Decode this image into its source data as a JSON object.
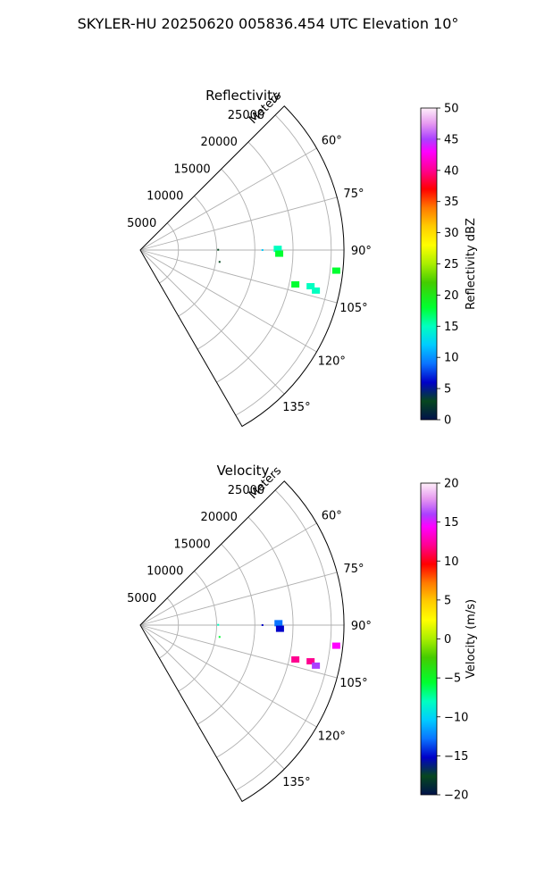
{
  "figure_title": "SKYLER-HU  20250620  005836.454 UTC Elevation 10°",
  "chart_data": [
    {
      "type": "polar-sector",
      "title": "Reflectivity",
      "range_label": "Meters",
      "range_ticks": [
        5000,
        10000,
        15000,
        20000,
        25000
      ],
      "range_max": 26667,
      "azimuth_range_deg": [
        45,
        150
      ],
      "azimuth_ticks": [
        60,
        75,
        90,
        105,
        120,
        135
      ],
      "azimuth_tick_labels": [
        "60°",
        "75°",
        "90°",
        "105°",
        "120°",
        "135°"
      ],
      "grid": true,
      "colorbar": {
        "label": "Reflectivity dBZ",
        "min": 0,
        "max": 50,
        "ticks": [
          0,
          5,
          10,
          15,
          20,
          25,
          30,
          35,
          40,
          45,
          50
        ],
        "tick_labels": [
          "0",
          "5",
          "10",
          "15",
          "20",
          "25",
          "30",
          "35",
          "40",
          "45",
          "50"
        ]
      },
      "echoes": [
        {
          "az": 89.5,
          "r": 18000,
          "value": 17
        },
        {
          "az": 91.5,
          "r": 18200,
          "value": 18
        },
        {
          "az": 89.8,
          "r": 10200,
          "value": 3
        },
        {
          "az": 90.0,
          "r": 16000,
          "value": 12
        },
        {
          "az": 96.0,
          "r": 25800,
          "value": 21
        },
        {
          "az": 98.5,
          "r": 10500,
          "value": 3
        },
        {
          "az": 102.5,
          "r": 20800,
          "value": 20
        },
        {
          "az": 102.0,
          "r": 22800,
          "value": 16
        },
        {
          "az": 103.0,
          "r": 23600,
          "value": 15
        }
      ]
    },
    {
      "type": "polar-sector",
      "title": "Velocity",
      "range_label": "Meters",
      "range_ticks": [
        5000,
        10000,
        15000,
        20000,
        25000
      ],
      "range_max": 26667,
      "azimuth_range_deg": [
        45,
        150
      ],
      "azimuth_ticks": [
        60,
        75,
        90,
        105,
        120,
        135
      ],
      "azimuth_tick_labels": [
        "60°",
        "75°",
        "90°",
        "105°",
        "120°",
        "135°"
      ],
      "grid": true,
      "colorbar": {
        "label": "Velocity (m/s)",
        "min": -20,
        "max": 20,
        "ticks": [
          -20,
          -15,
          -10,
          -5,
          0,
          5,
          10,
          15,
          20
        ],
        "tick_labels": [
          "−20",
          "−15",
          "−10",
          "−5",
          "0",
          "5",
          "10",
          "15",
          "20"
        ]
      },
      "echoes": [
        {
          "az": 89.2,
          "r": 18100,
          "value": -11
        },
        {
          "az": 91.5,
          "r": 18300,
          "value": -13
        },
        {
          "az": 89.8,
          "r": 10200,
          "value": -6
        },
        {
          "az": 90.0,
          "r": 16000,
          "value": -13
        },
        {
          "az": 96.0,
          "r": 25800,
          "value": 15
        },
        {
          "az": 98.5,
          "r": 10500,
          "value": -5
        },
        {
          "az": 102.5,
          "r": 20800,
          "value": 13
        },
        {
          "az": 102.0,
          "r": 22800,
          "value": 12
        },
        {
          "az": 103.0,
          "r": 23600,
          "value": 16
        }
      ]
    }
  ]
}
